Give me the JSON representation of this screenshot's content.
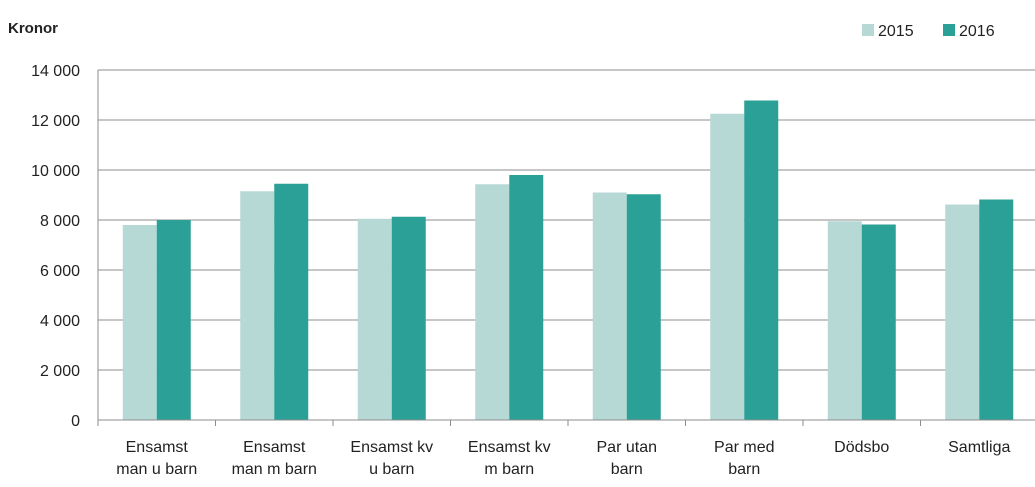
{
  "chart_data": {
    "type": "bar",
    "y_label": "Kronor",
    "categories": [
      "Ensamst\nman u barn",
      "Ensamst\nman m barn",
      "Ensamst kv\nu barn",
      "Ensamst kv\nm barn",
      "Par utan\nbarn",
      "Par med\nbarn",
      "Dödsbo",
      "Samtliga"
    ],
    "series": [
      {
        "name": "2015",
        "color": "#b7d9d6",
        "values": [
          7800,
          9150,
          8050,
          9430,
          9100,
          12250,
          7950,
          8620
        ]
      },
      {
        "name": "2016",
        "color": "#2aa096",
        "values": [
          8000,
          9450,
          8130,
          9800,
          9030,
          12780,
          7820,
          8820
        ]
      }
    ],
    "ylim": [
      0,
      14000
    ],
    "yticks": [
      0,
      {
        "value": 2000,
        "label": "2 000"
      },
      {
        "value": 4000,
        "label": "4 000"
      },
      {
        "value": 6000,
        "label": "6 000"
      },
      {
        "value": 8000,
        "label": "8 000"
      },
      {
        "value": 10000,
        "label": "10 000"
      },
      {
        "value": 12000,
        "label": "12 000"
      },
      {
        "value": 14000,
        "label": "14 000"
      }
    ],
    "grid": true,
    "legend": "top-right"
  }
}
